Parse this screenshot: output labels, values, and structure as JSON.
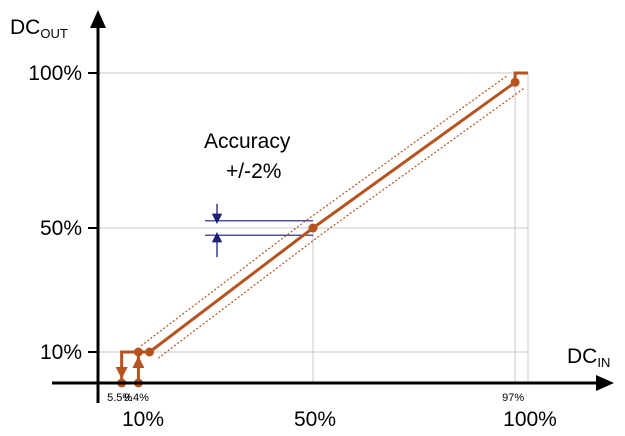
{
  "chart_data": {
    "type": "line",
    "xlabel": "DC",
    "xlabel_sub": "IN",
    "ylabel": "DC",
    "ylabel_sub": "OUT",
    "x_ticks": [
      {
        "value": 10,
        "label": "10%"
      },
      {
        "value": 50,
        "label": "50%"
      },
      {
        "value": 100,
        "label": "100%"
      }
    ],
    "x_small_ticks": [
      {
        "value": 5.5,
        "label": "5.5%"
      },
      {
        "value": 9.4,
        "label": "9.4%"
      },
      {
        "value": 97,
        "label": "97%"
      }
    ],
    "y_ticks": [
      {
        "value": 10,
        "label": "10%"
      },
      {
        "value": 50,
        "label": "50%"
      },
      {
        "value": 100,
        "label": "100%"
      }
    ],
    "grid": true,
    "series": [
      {
        "points": [
          [
            12,
            10
          ],
          [
            50,
            50
          ],
          [
            97,
            97
          ],
          [
            97,
            100
          ],
          [
            100,
            100
          ]
        ]
      }
    ],
    "low_region": {
      "points": [
        [
          5.5,
          0
        ],
        [
          5.5,
          10
        ],
        [
          9.4,
          10
        ],
        [
          12,
          10
        ]
      ],
      "lower_branch": [
        [
          4.5,
          0
        ],
        [
          9.4,
          0
        ]
      ]
    },
    "markers": [
      [
        5.5,
        0
      ],
      [
        9.4,
        0
      ],
      [
        9.4,
        10
      ],
      [
        12,
        10
      ],
      [
        50,
        50
      ],
      [
        97,
        97
      ]
    ],
    "accuracy_band": 2,
    "annotations": [
      {
        "text": "Accuracy"
      },
      {
        "text": "+/-2%"
      }
    ],
    "colors": {
      "series": "#b5541f",
      "axis": "#000000",
      "grid": "#c8c8c8",
      "accuracy_lines": "#1b1f7a"
    }
  }
}
